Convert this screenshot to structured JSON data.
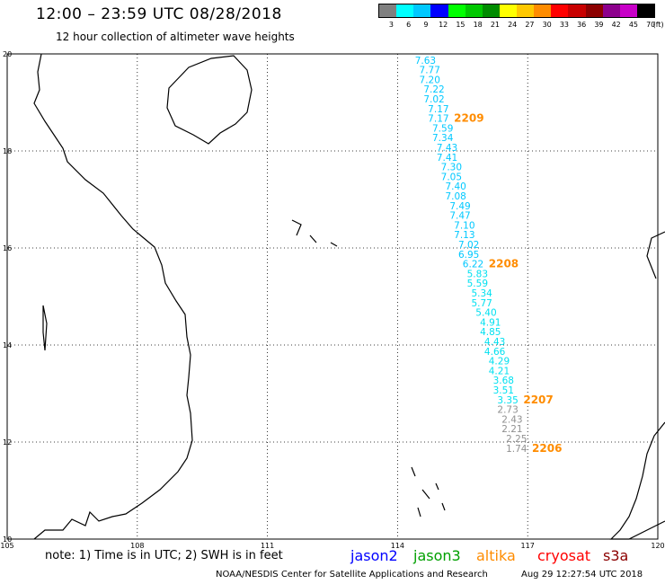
{
  "header": {
    "title": "12:00 – 23:59 UTC 08/28/2018",
    "subtitle": "12 hour collection of altimeter wave heights"
  },
  "color_scale": {
    "bins": [
      {
        "label": "3",
        "color": "#808080"
      },
      {
        "label": "6",
        "color": "#00ffff"
      },
      {
        "label": "9",
        "color": "#00c8ff"
      },
      {
        "label": "12",
        "color": "#0000ff"
      },
      {
        "label": "15",
        "color": "#00ff00"
      },
      {
        "label": "18",
        "color": "#00c800"
      },
      {
        "label": "21",
        "color": "#008c00"
      },
      {
        "label": "24",
        "color": "#ffff00"
      },
      {
        "label": "27",
        "color": "#ffc800"
      },
      {
        "label": "30",
        "color": "#ff8c00"
      },
      {
        "label": "33",
        "color": "#ff0000"
      },
      {
        "label": "36",
        "color": "#c80000"
      },
      {
        "label": "39",
        "color": "#8c0000"
      },
      {
        "label": "42",
        "color": "#8c008c"
      },
      {
        "label": "45",
        "color": "#c800c8"
      },
      {
        "label": "70",
        "color": "#000000"
      }
    ],
    "unit": "(ft)"
  },
  "map": {
    "lat_labels": [
      "20",
      "18",
      "16",
      "14",
      "12",
      "10"
    ],
    "lon_labels": [
      "105",
      "108",
      "111",
      "114",
      "117",
      "120"
    ],
    "lat_range": [
      10,
      20
    ],
    "lon_range": [
      105,
      120
    ],
    "track_colors": {
      "light": "#00c8ff",
      "cyan": "#00e0f0",
      "gray": "#909090",
      "time": "#ff8c00"
    },
    "track": [
      {
        "lat": 19.8,
        "lon": 114.4,
        "value": "7.63",
        "cls": "light"
      },
      {
        "lat": 19.6,
        "lon": 114.5,
        "value": "7.77",
        "cls": "light"
      },
      {
        "lat": 19.4,
        "lon": 114.5,
        "value": "7.20",
        "cls": "light"
      },
      {
        "lat": 19.2,
        "lon": 114.6,
        "value": "7.22",
        "cls": "light"
      },
      {
        "lat": 19.0,
        "lon": 114.6,
        "value": "7.02",
        "cls": "light"
      },
      {
        "lat": 18.8,
        "lon": 114.7,
        "value": "7.17",
        "cls": "light"
      },
      {
        "lat": 18.6,
        "lon": 114.7,
        "value": "7.17",
        "cls": "light"
      },
      {
        "lat": 18.4,
        "lon": 114.8,
        "value": "7.59",
        "cls": "light"
      },
      {
        "lat": 18.2,
        "lon": 114.8,
        "value": "7.34",
        "cls": "light"
      },
      {
        "lat": 18.0,
        "lon": 114.9,
        "value": "7.43",
        "cls": "light"
      },
      {
        "lat": 17.8,
        "lon": 114.9,
        "value": "7.41",
        "cls": "light"
      },
      {
        "lat": 17.6,
        "lon": 115.0,
        "value": "7.30",
        "cls": "light"
      },
      {
        "lat": 17.4,
        "lon": 115.0,
        "value": "7.05",
        "cls": "light"
      },
      {
        "lat": 17.2,
        "lon": 115.1,
        "value": "7.40",
        "cls": "light"
      },
      {
        "lat": 17.0,
        "lon": 115.1,
        "value": "7.08",
        "cls": "light"
      },
      {
        "lat": 16.8,
        "lon": 115.2,
        "value": "7.49",
        "cls": "light"
      },
      {
        "lat": 16.6,
        "lon": 115.2,
        "value": "7.47",
        "cls": "light"
      },
      {
        "lat": 16.4,
        "lon": 115.3,
        "value": "7.10",
        "cls": "light"
      },
      {
        "lat": 16.2,
        "lon": 115.3,
        "value": "7.13",
        "cls": "light"
      },
      {
        "lat": 16.0,
        "lon": 115.4,
        "value": "7.02",
        "cls": "light"
      },
      {
        "lat": 15.8,
        "lon": 115.4,
        "value": "6.95",
        "cls": "light"
      },
      {
        "lat": 15.6,
        "lon": 115.5,
        "value": "6.22",
        "cls": "light"
      },
      {
        "lat": 15.4,
        "lon": 115.6,
        "value": "5.83",
        "cls": "cyan"
      },
      {
        "lat": 15.2,
        "lon": 115.6,
        "value": "5.59",
        "cls": "cyan"
      },
      {
        "lat": 15.0,
        "lon": 115.7,
        "value": "5.34",
        "cls": "cyan"
      },
      {
        "lat": 14.8,
        "lon": 115.7,
        "value": "5.77",
        "cls": "cyan"
      },
      {
        "lat": 14.6,
        "lon": 115.8,
        "value": "5.40",
        "cls": "cyan"
      },
      {
        "lat": 14.4,
        "lon": 115.9,
        "value": "4.91",
        "cls": "cyan"
      },
      {
        "lat": 14.2,
        "lon": 115.9,
        "value": "4.85",
        "cls": "cyan"
      },
      {
        "lat": 14.0,
        "lon": 116.0,
        "value": "4.43",
        "cls": "cyan"
      },
      {
        "lat": 13.8,
        "lon": 116.0,
        "value": "4.66",
        "cls": "cyan"
      },
      {
        "lat": 13.6,
        "lon": 116.1,
        "value": "4.29",
        "cls": "cyan"
      },
      {
        "lat": 13.4,
        "lon": 116.1,
        "value": "4.21",
        "cls": "cyan"
      },
      {
        "lat": 13.2,
        "lon": 116.2,
        "value": "3.68",
        "cls": "cyan"
      },
      {
        "lat": 13.0,
        "lon": 116.2,
        "value": "3.51",
        "cls": "cyan"
      },
      {
        "lat": 12.8,
        "lon": 116.3,
        "value": "3.35",
        "cls": "cyan"
      },
      {
        "lat": 12.6,
        "lon": 116.3,
        "value": "2.73",
        "cls": "gray"
      },
      {
        "lat": 12.4,
        "lon": 116.4,
        "value": "2.43",
        "cls": "gray"
      },
      {
        "lat": 12.2,
        "lon": 116.4,
        "value": "2.21",
        "cls": "gray"
      },
      {
        "lat": 12.0,
        "lon": 116.5,
        "value": "2.25",
        "cls": "gray"
      },
      {
        "lat": 11.8,
        "lon": 116.5,
        "value": "1.74",
        "cls": "gray"
      }
    ],
    "time_labels": [
      {
        "value": "2209",
        "lat": 18.6,
        "lon": 115.3
      },
      {
        "value": "2208",
        "lat": 15.6,
        "lon": 116.1
      },
      {
        "value": "2207",
        "lat": 12.8,
        "lon": 116.9
      },
      {
        "value": "2206",
        "lat": 11.8,
        "lon": 117.1
      }
    ]
  },
  "footer": {
    "note": "note:  1) Time is in UTC;  2) SWH is in feet",
    "satellites": [
      {
        "label": "jason2",
        "color": "#0000ff"
      },
      {
        "label": "jason3",
        "color": "#00a000"
      },
      {
        "label": "altika",
        "color": "#ff8c00"
      },
      {
        "label": "cryosat",
        "color": "#ff0000"
      },
      {
        "label": "s3a",
        "color": "#8c0000"
      }
    ],
    "credit": "NOAA/NESDIS Center for Satellite Applications and Research",
    "timestamp": "Aug 29 12:27:54 UTC 2018"
  }
}
